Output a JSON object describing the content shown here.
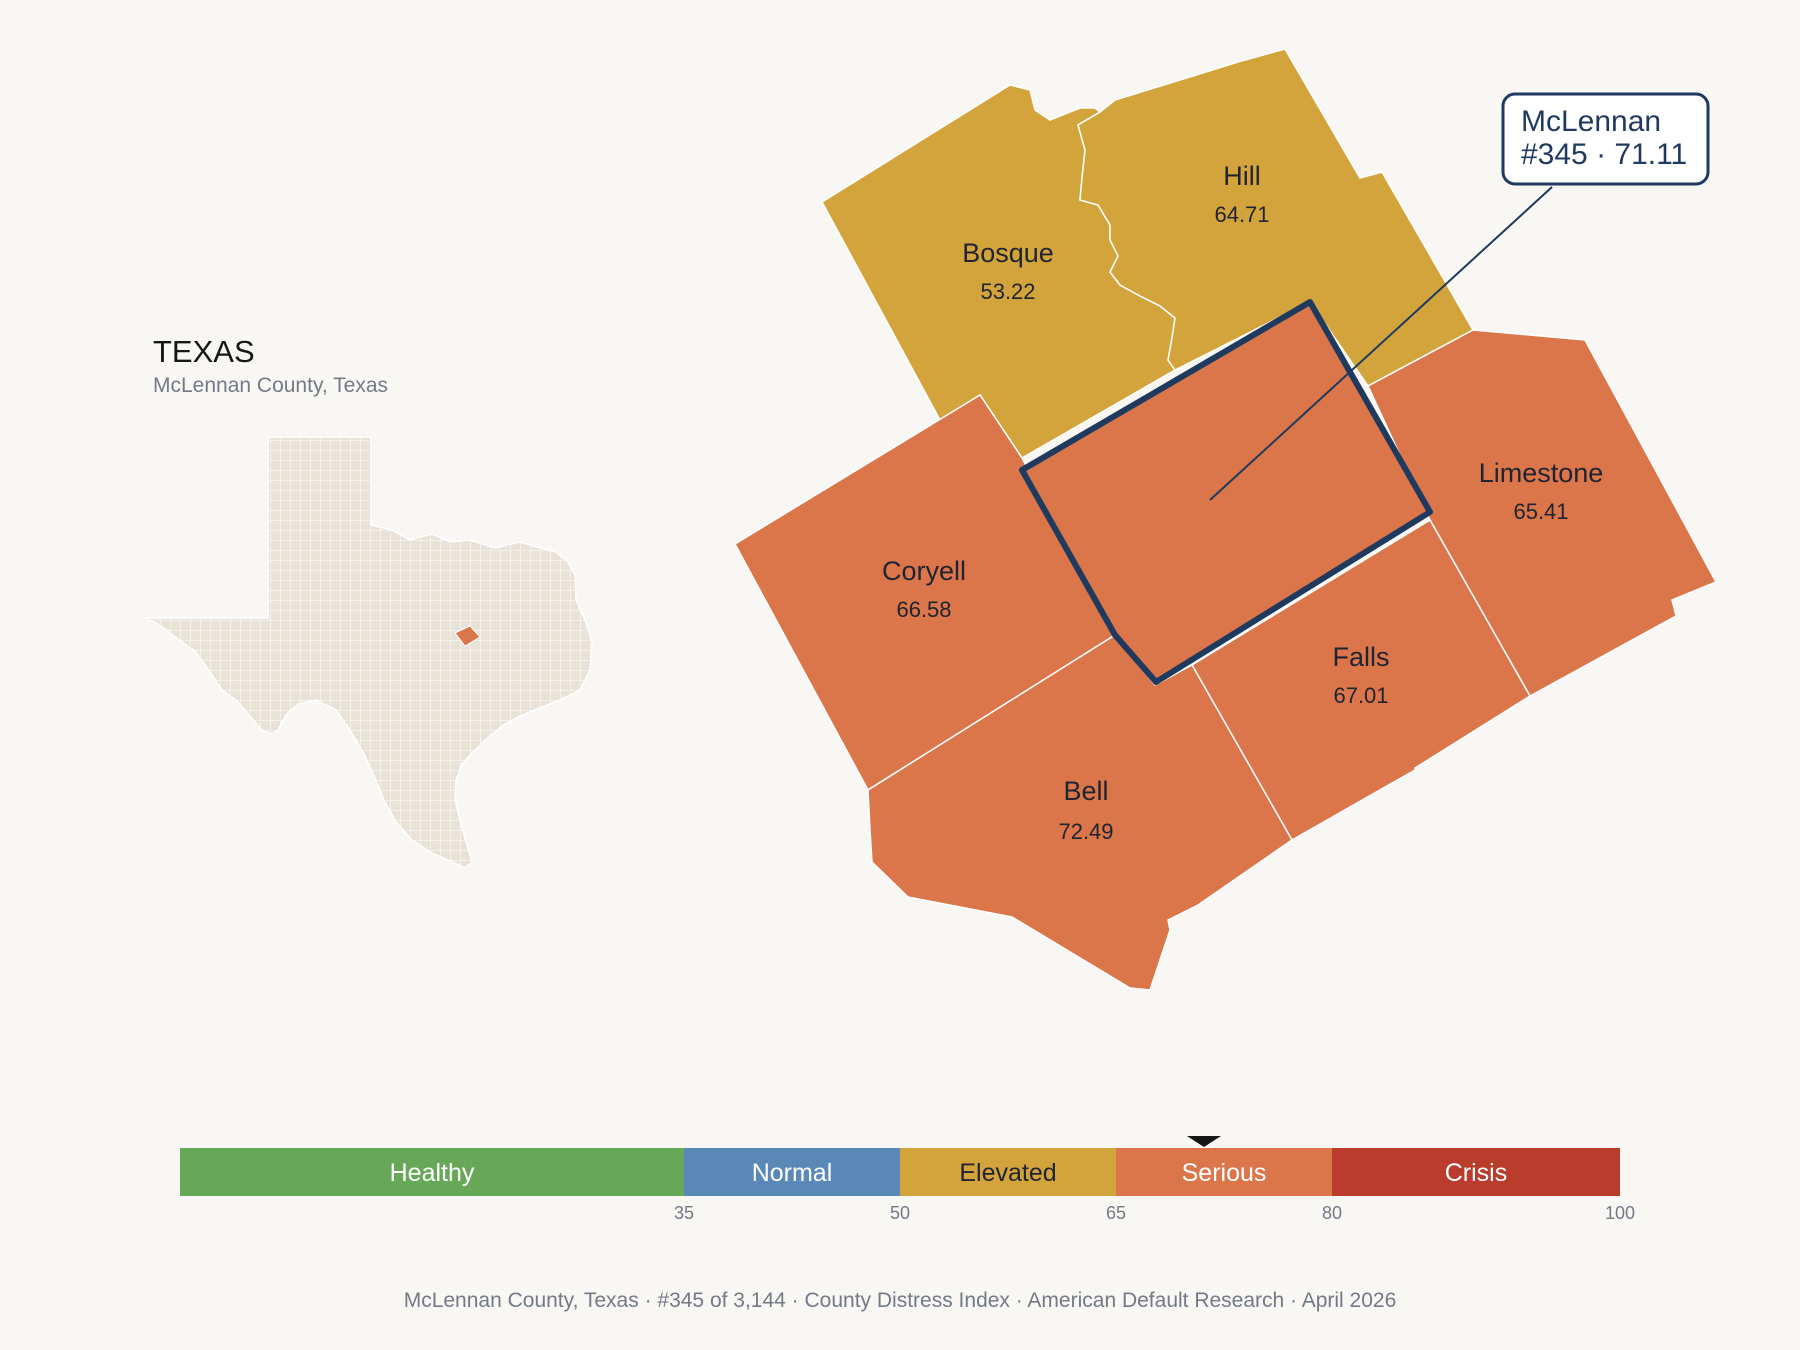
{
  "inset": {
    "title": "TEXAS",
    "subtitle": "McLennan County, Texas"
  },
  "counties": [
    {
      "id": "bosque",
      "name": "Bosque",
      "value": "53.22",
      "category": "Elevated"
    },
    {
      "id": "hill",
      "name": "Hill",
      "value": "64.71",
      "category": "Elevated"
    },
    {
      "id": "coryell",
      "name": "Coryell",
      "value": "66.58",
      "category": "Serious"
    },
    {
      "id": "limestone",
      "name": "Limestone",
      "value": "65.41",
      "category": "Serious"
    },
    {
      "id": "falls",
      "name": "Falls",
      "value": "67.01",
      "category": "Serious"
    },
    {
      "id": "bell",
      "name": "Bell",
      "value": "72.49",
      "category": "Serious"
    },
    {
      "id": "mclennan",
      "name": "McLennan",
      "value": "71.11",
      "category": "Serious",
      "highlighted": true
    }
  ],
  "callout": {
    "line1": "McLennan",
    "line2": "#345 · 71.11"
  },
  "scale": {
    "min": 0,
    "max": 100,
    "marker_value": 71.11,
    "bands": [
      {
        "label": "Healthy",
        "from": 0,
        "to": 35,
        "color": "#67a758",
        "text_color": "#ffffff"
      },
      {
        "label": "Normal",
        "from": 35,
        "to": 50,
        "color": "#5b89b7",
        "text_color": "#ffffff"
      },
      {
        "label": "Elevated",
        "from": 50,
        "to": 65,
        "color": "#d3a43b",
        "text_color": "#1f2430"
      },
      {
        "label": "Serious",
        "from": 65,
        "to": 80,
        "color": "#db754a",
        "text_color": "#ffffff"
      },
      {
        "label": "Crisis",
        "from": 80,
        "to": 100,
        "color": "#b93c2c",
        "text_color": "#ffffff"
      }
    ],
    "ticks": [
      "35",
      "50",
      "65",
      "80",
      "100"
    ]
  },
  "colors": {
    "elevated": "#d3a43b",
    "serious": "#db754a",
    "highlight_outline": "#1f3a5f",
    "inset_fill": "#e8e2d7",
    "inset_highlight": "#db754a",
    "background": "#f9f7f4"
  },
  "footer": "McLennan County, Texas  ·  #345 of 3,144  ·  County Distress Index  ·  American Default Research  ·  April 2026"
}
